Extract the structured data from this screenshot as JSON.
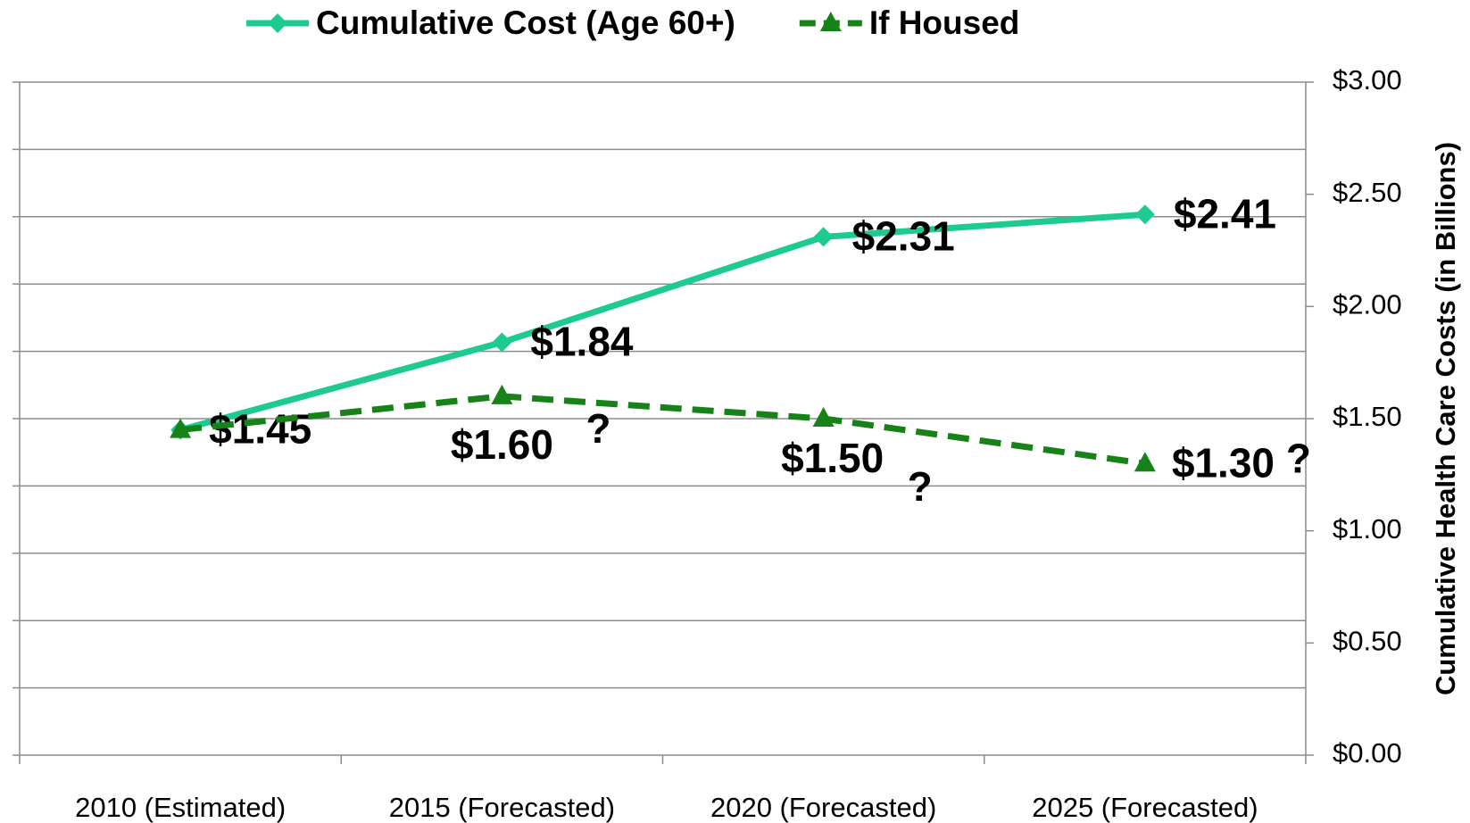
{
  "chart_data": {
    "type": "line",
    "y2_label": "Cumulative Health Care Costs (in Billions)",
    "categories": [
      "2010 (Estimated)",
      "2015 (Forecasted)",
      "2020 (Forecasted)",
      "2025 (Forecasted)"
    ],
    "series": [
      {
        "name": "Cumulative Cost (Age 60+)",
        "color": "#1dca92",
        "axis": "y2",
        "marker": "diamond",
        "dash": false,
        "values": [
          1.45,
          1.84,
          2.31,
          2.41
        ],
        "value_labels": [
          "$1.45",
          "$1.84",
          "$2.31",
          "$2.41"
        ]
      },
      {
        "name": "If Housed",
        "color": "#178217",
        "axis": "y2",
        "marker": "triangle",
        "dash": true,
        "values": [
          1.45,
          1.6,
          1.5,
          1.3
        ],
        "value_labels": [
          null,
          "$1.60",
          "$1.50",
          "$1.30"
        ]
      }
    ],
    "annotations": [
      "?",
      "?",
      "?"
    ],
    "ylim": [
      0,
      3
    ],
    "yticks": [
      0,
      0.3,
      0.6,
      0.9,
      1.2,
      1.5,
      1.8,
      2.1,
      2.4,
      2.7,
      3
    ],
    "y2lim": [
      0,
      3
    ],
    "y2ticks": [
      {
        "value": 0,
        "label": "$0.00"
      },
      {
        "value": 0.5,
        "label": "$0.50"
      },
      {
        "value": 1,
        "label": "$1.00"
      },
      {
        "value": 1.5,
        "label": "$1.50"
      },
      {
        "value": 2,
        "label": "$2.00"
      },
      {
        "value": 2.5,
        "label": "$2.50"
      },
      {
        "value": 3,
        "label": "$3.00"
      }
    ],
    "grid": true,
    "legend": "top"
  }
}
